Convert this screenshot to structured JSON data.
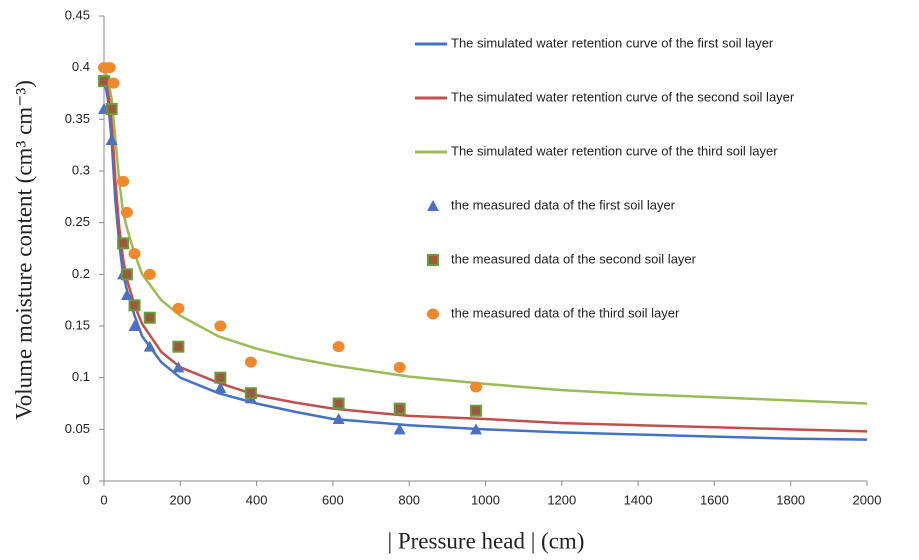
{
  "chart_data": {
    "type": "line",
    "xlabel": "| Pressure head | (cm)",
    "ylabel": "Volume moisture content (cm³ cm⁻³)",
    "xlim": [
      0,
      2000
    ],
    "xticks": [
      0,
      200,
      400,
      600,
      800,
      1000,
      1200,
      1400,
      1600,
      1800,
      2000
    ],
    "ylim": [
      0,
      0.45
    ],
    "yticks": [
      0,
      0.05,
      0.1,
      0.15,
      0.2,
      0.25,
      0.3,
      0.35,
      0.4,
      0.45
    ],
    "grid": false,
    "legend": "top-right",
    "series": [
      {
        "name": "The simulated water retention curve of the first  soil layer",
        "type": "line",
        "color": "#4472c4",
        "x": [
          0,
          10,
          20,
          30,
          40,
          50,
          60,
          80,
          100,
          150,
          200,
          300,
          400,
          500,
          600,
          800,
          1000,
          1200,
          1400,
          1600,
          1800,
          2000
        ],
        "values": [
          0.39,
          0.37,
          0.33,
          0.27,
          0.23,
          0.2,
          0.185,
          0.16,
          0.14,
          0.115,
          0.1,
          0.085,
          0.075,
          0.067,
          0.06,
          0.054,
          0.05,
          0.047,
          0.045,
          0.043,
          0.041,
          0.04
        ]
      },
      {
        "name": "The simulated water retention curve of the second  soil layer",
        "type": "line",
        "color": "#c0504d",
        "x": [
          0,
          10,
          20,
          30,
          40,
          50,
          60,
          80,
          100,
          150,
          200,
          300,
          400,
          500,
          600,
          800,
          1000,
          1200,
          1400,
          1600,
          1800,
          2000
        ],
        "values": [
          0.39,
          0.38,
          0.35,
          0.29,
          0.245,
          0.215,
          0.195,
          0.17,
          0.152,
          0.125,
          0.11,
          0.095,
          0.083,
          0.076,
          0.07,
          0.063,
          0.06,
          0.056,
          0.054,
          0.052,
          0.05,
          0.048
        ]
      },
      {
        "name": "The simulated water retention curve of the third soil layer",
        "type": "line",
        "color": "#9bbb59",
        "x": [
          0,
          10,
          20,
          30,
          40,
          50,
          60,
          80,
          100,
          150,
          200,
          300,
          400,
          500,
          600,
          800,
          1000,
          1200,
          1400,
          1600,
          1800,
          2000
        ],
        "values": [
          0.4,
          0.39,
          0.37,
          0.33,
          0.29,
          0.26,
          0.245,
          0.22,
          0.2,
          0.175,
          0.16,
          0.14,
          0.128,
          0.119,
          0.112,
          0.101,
          0.094,
          0.088,
          0.084,
          0.081,
          0.078,
          0.075
        ]
      },
      {
        "name": "the measured data of the first  soil layer",
        "type": "scatter",
        "marker": "triangle",
        "color": "#4f6fc0",
        "x": [
          0,
          20,
          50,
          60,
          80,
          120,
          195,
          305,
          385,
          615,
          775,
          975
        ],
        "values": [
          0.36,
          0.33,
          0.2,
          0.18,
          0.15,
          0.13,
          0.11,
          0.09,
          0.08,
          0.06,
          0.05,
          0.05
        ]
      },
      {
        "name": "the measured data of the second  soil layer",
        "type": "scatter",
        "marker": "square",
        "color": "#9b5a3c",
        "x": [
          0,
          20,
          50,
          60,
          80,
          120,
          195,
          305,
          385,
          615,
          775,
          975
        ],
        "values": [
          0.387,
          0.36,
          0.23,
          0.2,
          0.17,
          0.158,
          0.13,
          0.1,
          0.085,
          0.075,
          0.07,
          0.068
        ]
      },
      {
        "name": "the measured data of the third soil layer",
        "type": "scatter",
        "marker": "circle",
        "color": "#f0882c",
        "x": [
          0,
          15,
          25,
          50,
          60,
          80,
          120,
          195,
          305,
          385,
          615,
          775,
          975
        ],
        "values": [
          0.4,
          0.4,
          0.385,
          0.29,
          0.26,
          0.22,
          0.2,
          0.167,
          0.15,
          0.115,
          0.13,
          0.11,
          0.091
        ]
      }
    ]
  }
}
